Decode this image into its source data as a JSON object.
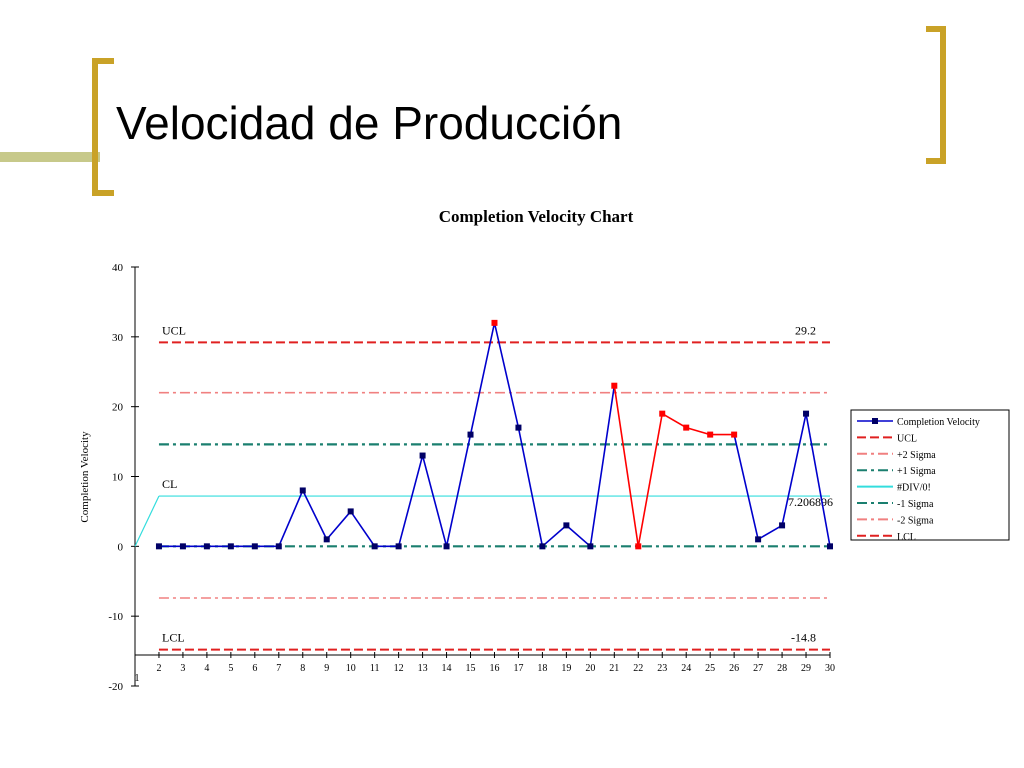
{
  "slide": {
    "title": "Velocidad de Producción"
  },
  "theme": {
    "accent_gold": "#c9a227",
    "deco_bar": "#c7c98a",
    "background": "#ffffff"
  },
  "chart_data": {
    "type": "line",
    "title": "Completion Velocity Chart",
    "xlabel": "",
    "ylabel": "Completion Velocity",
    "xlim": [
      1,
      30
    ],
    "ylim": [
      -20,
      40
    ],
    "x_ticks": [
      1,
      2,
      3,
      4,
      5,
      6,
      7,
      8,
      9,
      10,
      11,
      12,
      13,
      14,
      15,
      16,
      17,
      18,
      19,
      20,
      21,
      22,
      23,
      24,
      25,
      26,
      27,
      28,
      29,
      30
    ],
    "y_ticks": [
      40,
      30,
      20,
      10,
      0,
      -10,
      -20
    ],
    "grid": false,
    "legend_position": "right",
    "series": [
      {
        "name": "Completion Velocity",
        "color": "#0000cc",
        "segment_colors": "red between points 21 and 26",
        "out_of_control_color": "#ff0000",
        "x": [
          2,
          3,
          4,
          5,
          6,
          7,
          8,
          9,
          10,
          11,
          12,
          13,
          14,
          15,
          16,
          17,
          18,
          19,
          20,
          21,
          22,
          23,
          24,
          25,
          26,
          27,
          28,
          29,
          30
        ],
        "values": [
          0,
          0,
          0,
          0,
          0,
          0,
          8,
          1,
          5,
          0,
          0,
          13,
          0,
          16,
          32,
          17,
          0,
          3,
          0,
          23,
          0,
          19,
          17,
          16,
          16,
          1,
          3,
          19,
          0
        ],
        "red_points": [
          16,
          21,
          22,
          23,
          24,
          25,
          26
        ]
      },
      {
        "name": "UCL",
        "value": 29.2,
        "color": "#e02020",
        "dash": "long"
      },
      {
        "name": "+2 Sigma",
        "value": 22,
        "color": "#f08080",
        "dash": "dashdot"
      },
      {
        "name": "+1 Sigma",
        "value": 14.6,
        "color": "#1a7f6f",
        "dash": "dashdot"
      },
      {
        "name": "#DIV/0!",
        "value": 7.2,
        "color": "#33dddd",
        "dash": "solid"
      },
      {
        "name": "-1 Sigma",
        "value": 0,
        "color": "#1a7f6f",
        "dash": "dashdot"
      },
      {
        "name": "-2 Sigma",
        "value": -7.4,
        "color": "#f08080",
        "dash": "dashdot"
      },
      {
        "name": "LCL",
        "value": -14.8,
        "color": "#e02020",
        "dash": "long"
      }
    ],
    "annotations": [
      {
        "label": "UCL",
        "value_text": "29.2",
        "y": 29.2
      },
      {
        "label": "CL",
        "value_text": "7.206896",
        "y": 7.2
      },
      {
        "label": "LCL",
        "value_text": "-14.8",
        "y": -14.8
      }
    ]
  }
}
